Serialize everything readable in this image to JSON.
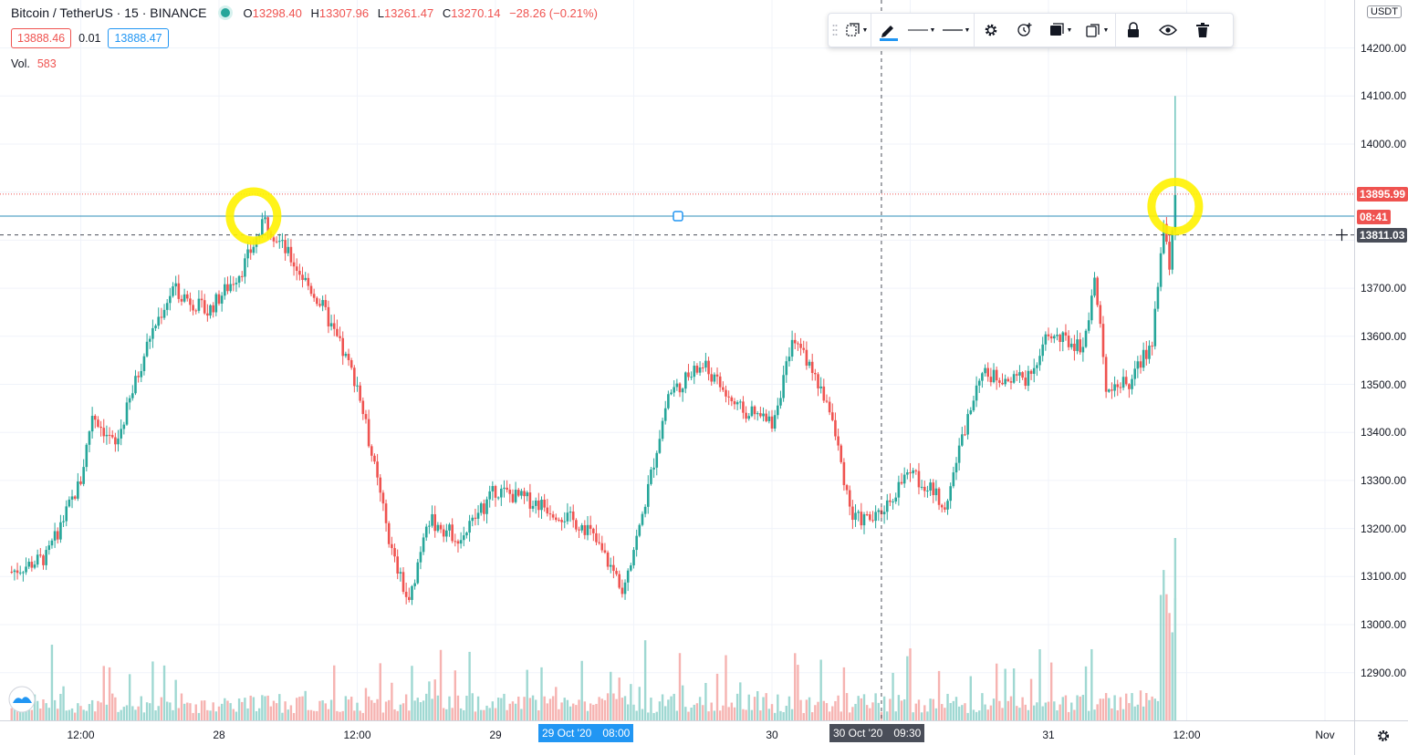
{
  "legend": {
    "title": "Bitcoin / TetherUS · 15 · BINANCE",
    "open_label": "O",
    "open": "13298.40",
    "high_label": "H",
    "high": "13307.96",
    "low_label": "L",
    "low": "13261.47",
    "close_label": "C",
    "close": "13270.14",
    "change": "−28.26 (−0.21%)"
  },
  "quote": {
    "bid": "13888.46",
    "spread": "0.01",
    "ask": "13888.47"
  },
  "volume": {
    "label": "Vol.",
    "value": "583"
  },
  "toolbar": {
    "items": [
      "drag-handle-icon",
      "template-icon",
      "pencil-icon",
      "line-style-icon",
      "line-width-icon",
      "gear-icon",
      "alert-add-icon",
      "fill-icon",
      "clone-icon",
      "lock-icon",
      "eye-icon",
      "trash-icon"
    ]
  },
  "price_scale": {
    "currency": "USDT",
    "labels": [
      "14200.00",
      "14100.00",
      "14000.00",
      "13700.00",
      "13600.00",
      "13500.00",
      "13400.00",
      "13300.00",
      "13200.00",
      "13100.00",
      "13000.00",
      "12900.00"
    ],
    "badges": {
      "last_price": "13895.99",
      "countdown": "08:41",
      "crosshair": "13811.03"
    }
  },
  "time_scale": {
    "labels": [
      "12:00",
      "28",
      "12:00",
      "29",
      "30",
      "31",
      "12:00",
      "Nov"
    ],
    "hover_date": "29 Oct '20",
    "hover_time": "08:00",
    "crosshair_date": "30 Oct '20",
    "crosshair_time": "09:30"
  },
  "colors": {
    "up": "#26a69a",
    "down": "#ef5350",
    "horizontal_line": "#2d8fb8",
    "highlight": "#fff200",
    "badge_red": "#ef5350",
    "badge_blue": "#2196f3",
    "badge_dark": "#4a4e59"
  },
  "chart_data": {
    "type": "candlestick",
    "symbol": "BTCUSDT",
    "interval": "15",
    "x_range": [
      "27 Oct '20 06:00",
      "01 Nov '20 00:00"
    ],
    "ylim": [
      12820,
      14250
    ],
    "horizontal_line": 13850,
    "last_price": 13895.99,
    "crosshair_price": 13811.03,
    "close_path": [
      {
        "x": "27 Oct '20 06:00",
        "close": 13110
      },
      {
        "x": "27 Oct '20 09:00",
        "close": 13140
      },
      {
        "x": "27 Oct '20 12:00",
        "close": 13300
      },
      {
        "x": "27 Oct '20 13:00",
        "close": 13440
      },
      {
        "x": "27 Oct '20 15:00",
        "close": 13370
      },
      {
        "x": "27 Oct '20 18:00",
        "close": 13600
      },
      {
        "x": "27 Oct '20 20:00",
        "close": 13700
      },
      {
        "x": "27 Oct '20 23:00",
        "close": 13650
      },
      {
        "x": "28 Oct '20 02:00",
        "close": 13740
      },
      {
        "x": "28 Oct '20 04:00",
        "close": 13840
      },
      {
        "x": "28 Oct '20 06:00",
        "close": 13770
      },
      {
        "x": "28 Oct '20 09:00",
        "close": 13660
      },
      {
        "x": "28 Oct '20 12:00",
        "close": 13500
      },
      {
        "x": "28 Oct '20 15:00",
        "close": 13150
      },
      {
        "x": "28 Oct '20 16:30",
        "close": 13040
      },
      {
        "x": "28 Oct '20 18:00",
        "close": 13220
      },
      {
        "x": "28 Oct '20 21:00",
        "close": 13180
      },
      {
        "x": "29 Oct '20 00:00",
        "close": 13280
      },
      {
        "x": "29 Oct '20 04:00",
        "close": 13250
      },
      {
        "x": "29 Oct '20 08:00",
        "close": 13200
      },
      {
        "x": "29 Oct '20 11:00",
        "close": 13080
      },
      {
        "x": "29 Oct '20 12:30",
        "close": 13200
      },
      {
        "x": "29 Oct '20 15:00",
        "close": 13480
      },
      {
        "x": "29 Oct '20 18:00",
        "close": 13540
      },
      {
        "x": "29 Oct '20 21:00",
        "close": 13450
      },
      {
        "x": "30 Oct '20 00:00",
        "close": 13420
      },
      {
        "x": "30 Oct '20 02:00",
        "close": 13600
      },
      {
        "x": "30 Oct '20 05:00",
        "close": 13450
      },
      {
        "x": "30 Oct '20 07:00",
        "close": 13220
      },
      {
        "x": "30 Oct '20 09:00",
        "close": 13220
      },
      {
        "x": "30 Oct '20 12:00",
        "close": 13320
      },
      {
        "x": "30 Oct '20 15:00",
        "close": 13250
      },
      {
        "x": "30 Oct '20 18:00",
        "close": 13520
      },
      {
        "x": "30 Oct '20 22:00",
        "close": 13510
      },
      {
        "x": "31 Oct '20 00:00",
        "close": 13600
      },
      {
        "x": "31 Oct '20 03:00",
        "close": 13580
      },
      {
        "x": "31 Oct '20 04:00",
        "close": 13720
      },
      {
        "x": "31 Oct '20 05:00",
        "close": 13500
      },
      {
        "x": "31 Oct '20 07:00",
        "close": 13500
      },
      {
        "x": "31 Oct '20 09:00",
        "close": 13590
      },
      {
        "x": "31 Oct '20 10:00",
        "close": 13830
      },
      {
        "x": "31 Oct '20 10:30",
        "close": 13740
      },
      {
        "x": "31 Oct '20 11:00",
        "close": 13900
      }
    ],
    "spike_high": 14100,
    "highlighted_levels": [
      {
        "x": "28 Oct '20 03:00",
        "price": 13850
      },
      {
        "x": "31 Oct '20 11:00",
        "price": 13870
      }
    ]
  }
}
